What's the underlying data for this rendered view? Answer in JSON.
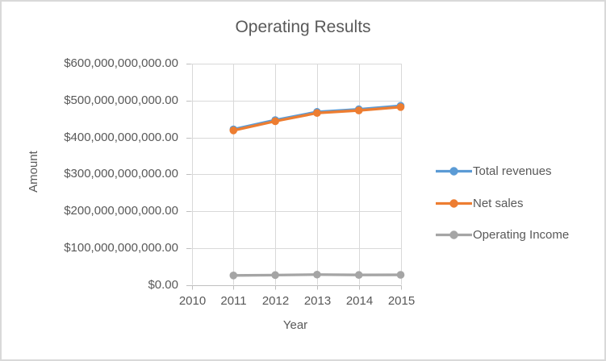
{
  "chart_data": {
    "type": "line",
    "title": "Operating Results",
    "xlabel": "Year",
    "ylabel": "Amount",
    "xlim": [
      2010,
      2015
    ],
    "ylim": [
      0,
      600000000000
    ],
    "grid": true,
    "legend_position": "right",
    "x_tick_labels": [
      "2010",
      "2011",
      "2012",
      "2013",
      "2014",
      "2015"
    ],
    "y_tick_labels_top_to_bottom": [
      "$600,000,000,000.00",
      "$500,000,000,000.00",
      "$400,000,000,000.00",
      "$300,000,000,000.00",
      "$200,000,000,000.00",
      "$100,000,000,000.00",
      "$0.00"
    ],
    "x": [
      2011,
      2012,
      2013,
      2014,
      2015
    ],
    "series": [
      {
        "name": "Total revenues",
        "color": "#5B9BD5",
        "values": [
          421850000000,
          446950000000,
          469160000000,
          476290000000,
          485650000000
        ]
      },
      {
        "name": "Net sales",
        "color": "#ED7D31",
        "values": [
          418950000000,
          443850000000,
          466110000000,
          473080000000,
          482230000000
        ]
      },
      {
        "name": "Operating Income",
        "color": "#A5A5A5",
        "values": [
          25540000000,
          26560000000,
          27800000000,
          26870000000,
          27150000000
        ]
      }
    ],
    "colors": {
      "text": "#595959",
      "gridline": "#D9D9D9",
      "axis": "#BFBFBF",
      "frame_border": "#D9D9D9",
      "background": "#FFFFFF"
    }
  }
}
